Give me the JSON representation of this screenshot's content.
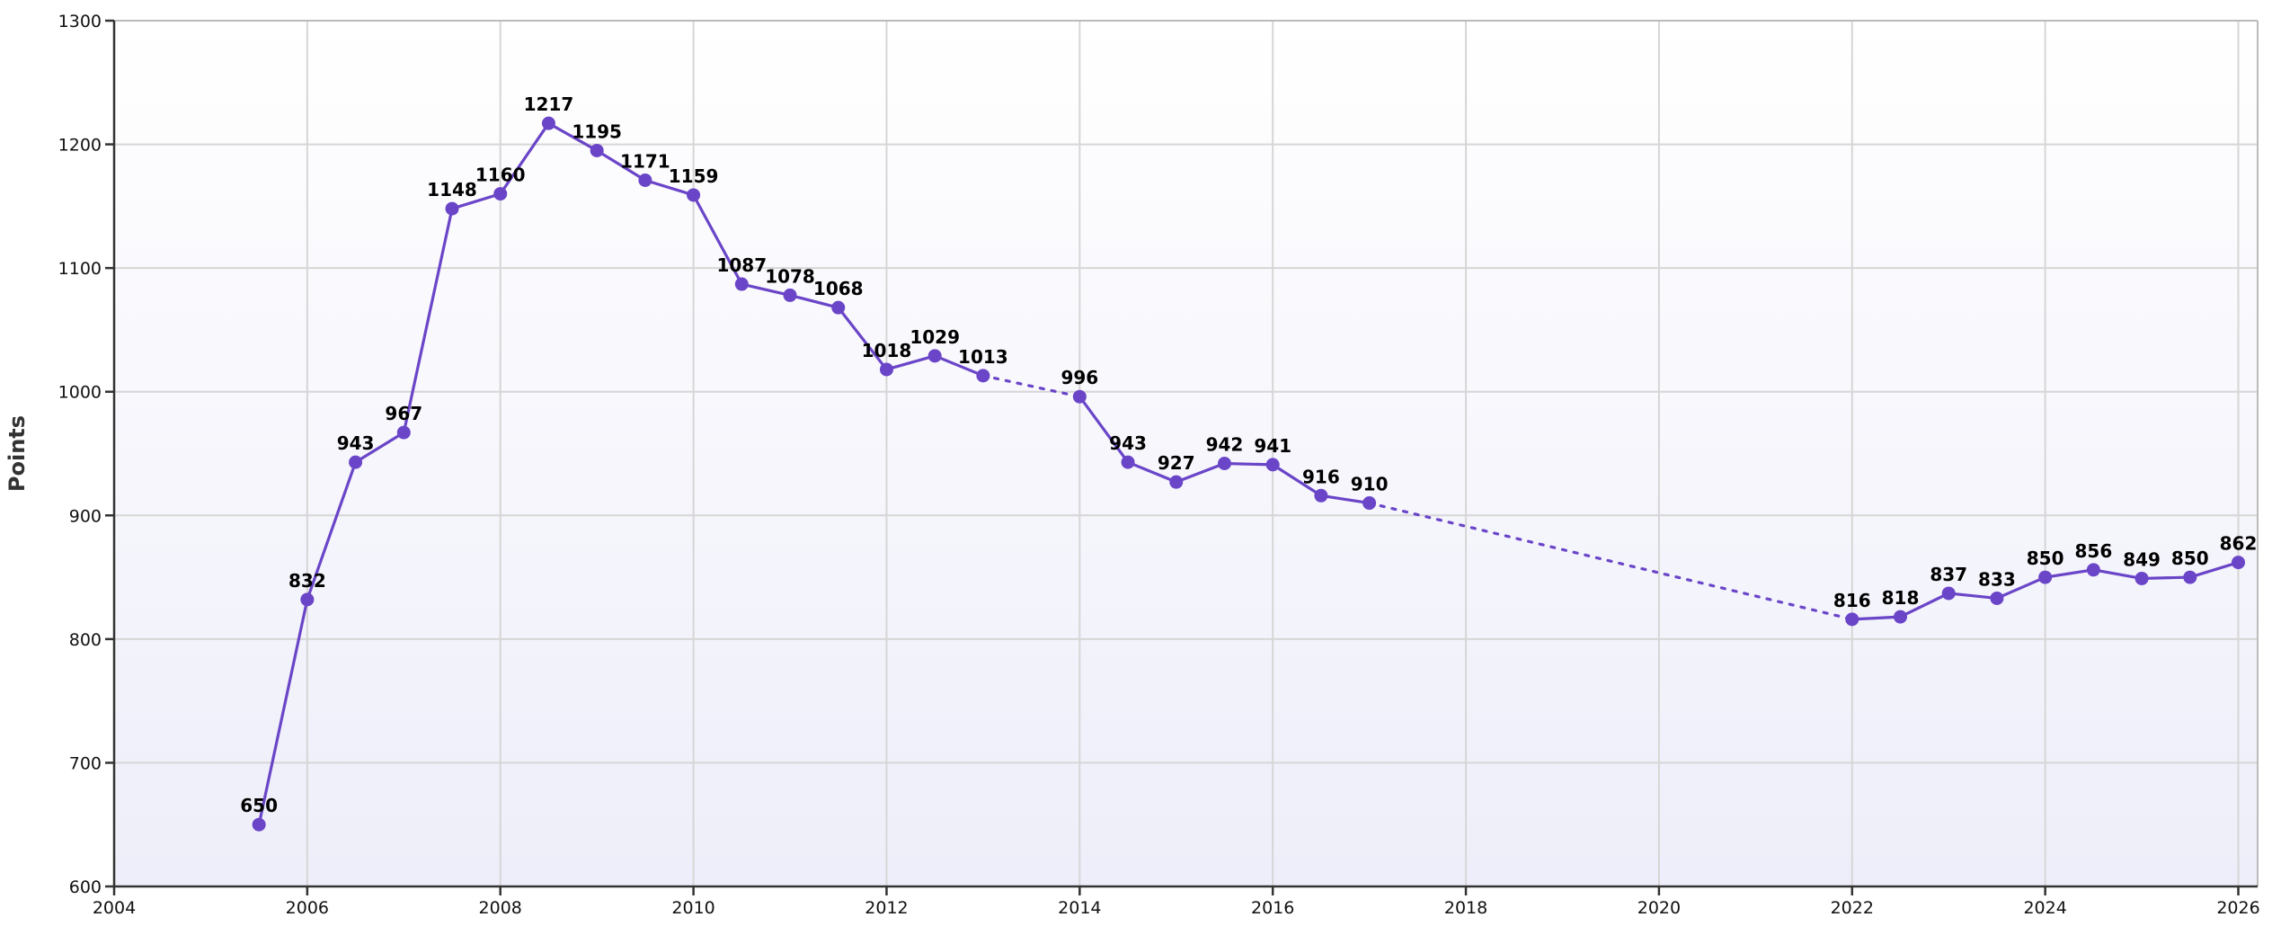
{
  "chart_data": {
    "type": "line",
    "title": "",
    "xlabel": "",
    "ylabel": "Points",
    "xlim": [
      2004,
      2026.2
    ],
    "ylim": [
      600,
      1300
    ],
    "x_ticks": [
      2004,
      2006,
      2008,
      2010,
      2012,
      2014,
      2016,
      2018,
      2020,
      2022,
      2024,
      2026
    ],
    "y_ticks": [
      600,
      700,
      800,
      900,
      1000,
      1100,
      1200,
      1300
    ],
    "grid": true,
    "legend": "none",
    "colors": {
      "series": "#6a45c8",
      "plot_bg_top": "#ffffff",
      "plot_bg_bottom": "#eeeefa"
    },
    "series": [
      {
        "x": [
          2005.5,
          2006.0,
          2006.5,
          2007.0,
          2007.5,
          2008.0,
          2008.5,
          2009.0,
          2009.5,
          2010.0,
          2010.5,
          2011.0,
          2011.5,
          2012.0,
          2012.5,
          2013.0,
          2014.0,
          2014.5,
          2015.0,
          2015.5,
          2016.0,
          2016.5,
          2017.0,
          2022.0,
          2022.5,
          2023.0,
          2023.5,
          2024.0,
          2024.5,
          2025.0,
          2025.5,
          2026.0
        ],
        "y": [
          650,
          832,
          943,
          967,
          1148,
          1160,
          1217,
          1195,
          1171,
          1159,
          1087,
          1078,
          1068,
          1018,
          1029,
          1013,
          996,
          943,
          927,
          942,
          941,
          916,
          910,
          816,
          818,
          837,
          833,
          850,
          856,
          849,
          850,
          862
        ],
        "labels": [
          "650",
          "832",
          "943",
          "967",
          "1148",
          "1160",
          "1217",
          "1195",
          "1171",
          "1159",
          "1087",
          "1078",
          "1068",
          "1018",
          "1029",
          "1013",
          "996",
          "943",
          "927",
          "942",
          "941",
          "916",
          "910",
          "816",
          "818",
          "837",
          "833",
          "850",
          "856",
          "849",
          "850",
          "862"
        ],
        "gaps_after_index": [
          15,
          22
        ]
      }
    ]
  }
}
